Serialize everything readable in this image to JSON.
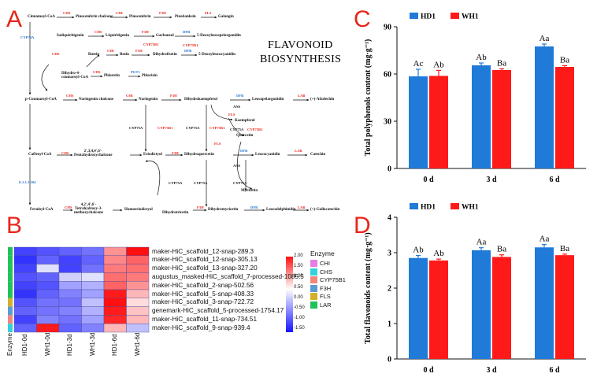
{
  "panels": {
    "a": "A",
    "b": "B",
    "c": "C",
    "d": "D"
  },
  "pathway": {
    "title_line1": "FLAVONOID",
    "title_line2": "BIOSYNTHESIS",
    "nodes": {
      "cinnamoyl": "Cinnamoyl-CoA",
      "pinocembrin_chalcone": "Pinocembrin chalcone",
      "pinocembrin": "Pinocembrin",
      "pinobanksin": "Pinobanksin",
      "galangin": "Galangin",
      "isoliquiritigenin": "Isoliquiritigenin",
      "liquiritigenin": "Liquiritigenin",
      "garbanzol": "Garbanzol",
      "deoxyleucopelargonidin": "5-Deoxyleucopelargonidin",
      "butein": "Butein",
      "butin": "Butin",
      "dihydrofisetin": "Dihydrofisetin",
      "deoxyleucocyanidin": "5-Deoxyleucocyanidin",
      "dihydro_coumaroyl": "Dihydro-4-\ncoumaroyl-CoA",
      "phloretin": "Phloretin",
      "phlorizin": "Phlorizin",
      "p_coumaroyl": "p-Coumaroyl-CoA",
      "naringenin_chalcone": "Naringenin chalcone",
      "naringenin": "Naringenin",
      "dihydrokaempferol": "Dihydrokaempferol",
      "leucopelargonidin": "Leucopelargonidin",
      "afzelechin": "(+)-Afzelechin",
      "kaempferol": "Kaempferol",
      "quercetin": "Quercetin",
      "caffeoyl": "Caffeoyl-CoA",
      "pentahydroxychalcone": "2',3,4,4',6'-\nPentahydroxychalcone",
      "eriodictyol": "Eriodictyol",
      "dihydroquercetin": "Dihydroquercetin",
      "leucocyanidin": "Leucocyanidin",
      "catechin": "Catechin",
      "myricetin": "Myricetin",
      "feruloyl": "Feruloyl-CoA",
      "tetrahydroxy": "4,2',4',6'-\nTetrahydroxy-3-\nmethoxychalcone",
      "homoeriodictyol": "Homoeriodictyol",
      "dihydrotricetin": "Dihydrotricetin",
      "dihydromyricetin": "Dihydromyricetin",
      "leucodelphinidin": "Leucodelphinidin",
      "gallocatechin": "(+)-Gallocatechin"
    },
    "enzymes": {
      "chs": "CHS",
      "chi": "CHI",
      "f3h": "F3H",
      "fls": "FLS",
      "cyp75b1": "CYP75B1",
      "dfr": "DFR",
      "lar": "LAR",
      "ans": "ANS",
      "cyp75a": "CYP75A",
      "cyp73a": "CYP73A",
      "pgt1": "PGT1",
      "e21": "E.2.1.1.104"
    }
  },
  "heatmap": {
    "rows": [
      "maker-HiC_scaffold_12-snap-289.3",
      "maker-HiC_scaffold_12-snap-305.13",
      "maker-HiC_scaffold_13-snap-327.20",
      "augustus_masked-HiC_scaffold_7-processed-1085.5",
      "maker-HiC_scaffold_2-snap-502.56",
      "maker-HiC_scaffold_5-snap-408.33",
      "maker-HiC_scaffold_3-snap-722.72",
      "genemark-HiC_scaffold_5-processed-1754.17",
      "maker-HiC_scaffold_11-snap-734.51",
      "maker-HiC_scaffold_9-snap-939.4"
    ],
    "columns": [
      "HD1-0d",
      "WH1-0d",
      "HD1-3d",
      "WH1-3d",
      "HD1-6d",
      "WH1-6d"
    ],
    "annotation_label": "Enzyme",
    "row_enzymes": [
      "LAR",
      "LAR",
      "LAR",
      "LAR",
      "LAR",
      "LAR",
      "FLS",
      "F3H",
      "CYP75B1",
      "CHS"
    ],
    "values": [
      [
        -1.2,
        -1.1,
        -1.0,
        -0.9,
        0.9,
        2.0
      ],
      [
        -1.3,
        -1.0,
        -1.2,
        -1.0,
        1.0,
        1.3
      ],
      [
        -1.2,
        -0.2,
        -1.2,
        -0.9,
        1.1,
        1.2
      ],
      [
        -1.1,
        -1.0,
        -0.3,
        -0.2,
        1.2,
        1.1
      ],
      [
        -1.2,
        -1.1,
        -0.6,
        -0.5,
        1.3,
        0.9
      ],
      [
        -1.3,
        -1.0,
        -0.8,
        -0.6,
        1.9,
        0.6
      ],
      [
        -1.1,
        -0.9,
        -0.9,
        -0.4,
        2.0,
        0.3
      ],
      [
        -1.0,
        -0.9,
        -0.8,
        -0.5,
        1.9,
        0.5
      ],
      [
        -1.2,
        -0.8,
        -0.9,
        -0.6,
        1.8,
        0.6
      ],
      [
        -1.0,
        1.9,
        -1.0,
        -0.8,
        0.6,
        -0.4
      ]
    ],
    "colorbar_ticks": [
      "2.00",
      "1.50",
      "1.00",
      "0.50",
      "0.00",
      "-0.50",
      "-1.00",
      "-1.50"
    ],
    "legend": {
      "title": "Enzyme",
      "items": [
        {
          "name": "CHI",
          "color": "#e57de6"
        },
        {
          "name": "CHS",
          "color": "#33d1d9"
        },
        {
          "name": "CYP75B1",
          "color": "#f3867b"
        },
        {
          "name": "F3H",
          "color": "#5b9bd5"
        },
        {
          "name": "FLS",
          "color": "#d4b02a"
        },
        {
          "name": "LAR",
          "color": "#22c25a"
        }
      ]
    }
  },
  "chart_data": [
    {
      "type": "bar",
      "categories": [
        "0 d",
        "3 d",
        "6 d"
      ],
      "series": [
        {
          "name": "HD1",
          "color": "#1f7ad8",
          "values": [
            58.5,
            65.5,
            77.5
          ],
          "errors": [
            4.5,
            1.5,
            1.5
          ],
          "labels": [
            "Ac",
            "Ab",
            "Aa"
          ]
        },
        {
          "name": "WH1",
          "color": "#ff1a1a",
          "values": [
            58.8,
            62.5,
            64.5
          ],
          "errors": [
            3.5,
            0.8,
            0.8
          ],
          "labels": [
            "Ab",
            "Ba",
            "Ba"
          ]
        }
      ],
      "ylabel": "Total polyphenols content (mg·g⁻¹)",
      "ylim": [
        0,
        90
      ],
      "yticks": [
        0,
        30,
        60,
        90
      ]
    },
    {
      "type": "bar",
      "categories": [
        "0 d",
        "3 d",
        "6 d"
      ],
      "series": [
        {
          "name": "HD1",
          "color": "#1f7ad8",
          "values": [
            2.85,
            3.07,
            3.15
          ],
          "errors": [
            0.07,
            0.07,
            0.08
          ],
          "labels": [
            "Ab",
            "Aa",
            "Aa"
          ]
        },
        {
          "name": "WH1",
          "color": "#ff1a1a",
          "values": [
            2.78,
            2.88,
            2.93
          ],
          "errors": [
            0.04,
            0.06,
            0.03
          ],
          "labels": [
            "Ab",
            "Ba",
            "Ba"
          ]
        }
      ],
      "ylabel": "Total flavonoids content (mg·g⁻¹)",
      "ylim": [
        0,
        4
      ],
      "yticks": [
        0,
        1,
        2,
        3,
        4
      ]
    }
  ]
}
